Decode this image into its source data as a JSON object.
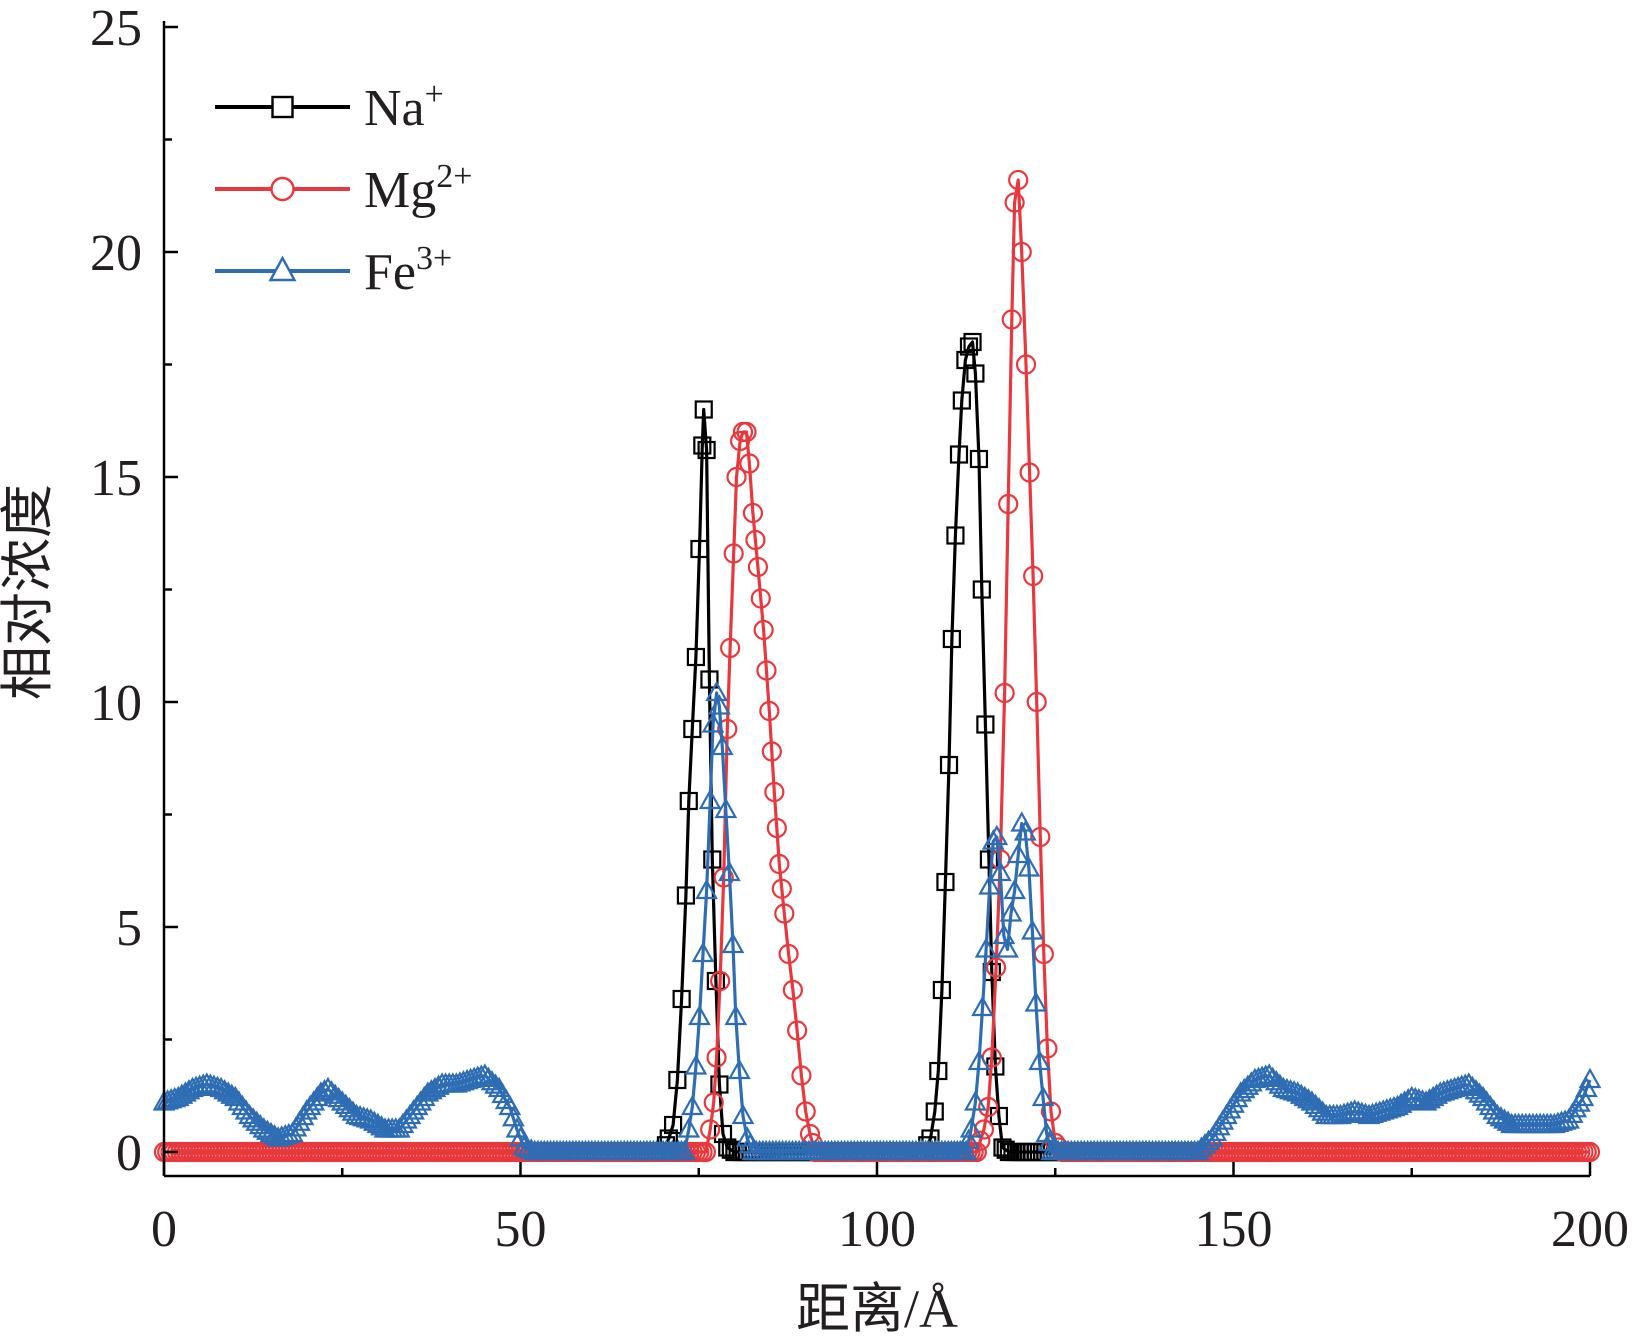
{
  "chart_data": {
    "type": "line",
    "xlabel": "距离/Å",
    "ylabel": "相对浓度",
    "xlim": [
      0,
      200
    ],
    "ylim": [
      -0.5,
      25
    ],
    "xticks": [
      0,
      50,
      100,
      150,
      200
    ],
    "yticks": [
      0,
      5,
      10,
      15,
      20,
      25
    ],
    "xtick_labels": [
      "0",
      "50",
      "100",
      "150",
      "200"
    ],
    "ytick_labels": [
      "0",
      "5",
      "10",
      "15",
      "20",
      "25"
    ],
    "grid": false,
    "legend_position": "top-left",
    "series": [
      {
        "name": "Na",
        "superscript": "+",
        "color": "#000000",
        "marker": "square",
        "points": [
          [
            70,
            0
          ],
          [
            70.8,
            0.3
          ],
          [
            71.4,
            0.6
          ],
          [
            72,
            1.6
          ],
          [
            72.6,
            3.4
          ],
          [
            73.2,
            5.7
          ],
          [
            73.6,
            7.8
          ],
          [
            74.1,
            9.4
          ],
          [
            74.6,
            11.0
          ],
          [
            75.1,
            13.4
          ],
          [
            75.5,
            15.7
          ],
          [
            75.7,
            16.5
          ],
          [
            76.1,
            15.6
          ],
          [
            76.5,
            10.5
          ],
          [
            76.9,
            6.5
          ],
          [
            77.4,
            3.8
          ],
          [
            77.9,
            1.5
          ],
          [
            78.4,
            0.4
          ],
          [
            79,
            0.1
          ],
          [
            80,
            0
          ],
          [
            85,
            0
          ],
          [
            90,
            0
          ],
          [
            95,
            0
          ],
          [
            100,
            0
          ],
          [
            105,
            0
          ],
          [
            106.6,
            0
          ],
          [
            107.5,
            0.3
          ],
          [
            108.1,
            0.9
          ],
          [
            108.6,
            1.8
          ],
          [
            109.1,
            3.6
          ],
          [
            109.6,
            6.0
          ],
          [
            110.1,
            8.6
          ],
          [
            110.5,
            11.4
          ],
          [
            111,
            13.7
          ],
          [
            111.5,
            15.5
          ],
          [
            111.9,
            16.7
          ],
          [
            112.4,
            17.6
          ],
          [
            112.9,
            17.9
          ],
          [
            113.4,
            18.0
          ],
          [
            113.8,
            17.3
          ],
          [
            114.3,
            15.4
          ],
          [
            114.7,
            12.5
          ],
          [
            115.2,
            9.5
          ],
          [
            115.7,
            6.5
          ],
          [
            116.1,
            4.0
          ],
          [
            116.6,
            1.9
          ],
          [
            117.1,
            0.8
          ],
          [
            117.6,
            0.1
          ],
          [
            118.5,
            0
          ],
          [
            120,
            0
          ],
          [
            125,
            0
          ],
          [
            130,
            0
          ]
        ]
      },
      {
        "name": "Mg",
        "superscript": "2+",
        "color": "#e8383d",
        "marker": "circle",
        "points": [
          [
            0,
            0
          ],
          [
            10,
            0
          ],
          [
            20,
            0
          ],
          [
            30,
            0
          ],
          [
            40,
            0
          ],
          [
            50,
            0
          ],
          [
            60,
            0
          ],
          [
            70,
            0
          ],
          [
            76,
            0
          ],
          [
            76.6,
            0.5
          ],
          [
            77.1,
            1.1
          ],
          [
            77.5,
            2.1
          ],
          [
            78,
            3.8
          ],
          [
            78.5,
            6.1
          ],
          [
            79,
            9.4
          ],
          [
            79.4,
            11.2
          ],
          [
            79.9,
            13.3
          ],
          [
            80.3,
            15.0
          ],
          [
            80.8,
            15.8
          ],
          [
            81.2,
            16.0
          ],
          [
            81.7,
            16.0
          ],
          [
            82.1,
            15.3
          ],
          [
            82.6,
            14.2
          ],
          [
            83.3,
            13.0
          ],
          [
            84.1,
            11.6
          ],
          [
            84.9,
            9.8
          ],
          [
            85.6,
            8.0
          ],
          [
            86.3,
            6.4
          ],
          [
            87,
            5.3
          ],
          [
            87.6,
            4.4
          ],
          [
            88.2,
            3.6
          ],
          [
            88.8,
            2.7
          ],
          [
            89.4,
            1.7
          ],
          [
            90,
            0.9
          ],
          [
            90.6,
            0.4
          ],
          [
            91.3,
            0
          ],
          [
            100,
            0
          ],
          [
            110,
            0
          ],
          [
            114,
            0
          ],
          [
            115,
            0.5
          ],
          [
            115.6,
            1.0
          ],
          [
            116.1,
            2.1
          ],
          [
            116.7,
            4.1
          ],
          [
            117.3,
            6.5
          ],
          [
            117.9,
            10.2
          ],
          [
            118.4,
            14.4
          ],
          [
            118.9,
            18.5
          ],
          [
            119.3,
            21.1
          ],
          [
            119.8,
            21.6
          ],
          [
            120.3,
            20.0
          ],
          [
            120.9,
            17.5
          ],
          [
            121.4,
            15.1
          ],
          [
            121.9,
            12.8
          ],
          [
            122.4,
            10.0
          ],
          [
            122.9,
            7.0
          ],
          [
            123.4,
            4.4
          ],
          [
            123.9,
            2.3
          ],
          [
            124.4,
            0.9
          ],
          [
            125,
            0.2
          ],
          [
            126,
            0
          ],
          [
            130,
            0
          ],
          [
            140,
            0
          ],
          [
            150,
            0
          ],
          [
            160,
            0
          ],
          [
            170,
            0
          ],
          [
            180,
            0
          ],
          [
            190,
            0
          ],
          [
            200,
            0
          ]
        ]
      },
      {
        "name": "Fe",
        "superscript": "3+",
        "color": "#2e6db4",
        "marker": "triangle",
        "points": [
          [
            0,
            1.1
          ],
          [
            2,
            1.2
          ],
          [
            4,
            1.4
          ],
          [
            6,
            1.5
          ],
          [
            8,
            1.4
          ],
          [
            10,
            1.2
          ],
          [
            12,
            0.8
          ],
          [
            14,
            0.5
          ],
          [
            16,
            0.3
          ],
          [
            18,
            0.4
          ],
          [
            20,
            0.9
          ],
          [
            22,
            1.3
          ],
          [
            23,
            1.4
          ],
          [
            25,
            1.1
          ],
          [
            27,
            0.8
          ],
          [
            29,
            0.7
          ],
          [
            31,
            0.5
          ],
          [
            33,
            0.5
          ],
          [
            35,
            0.9
          ],
          [
            37,
            1.3
          ],
          [
            39,
            1.5
          ],
          [
            41,
            1.5
          ],
          [
            43,
            1.6
          ],
          [
            45,
            1.7
          ],
          [
            47,
            1.4
          ],
          [
            48.5,
            1.0
          ],
          [
            49.5,
            0.5
          ],
          [
            50.5,
            0.1
          ],
          [
            52,
            0
          ],
          [
            60,
            0
          ],
          [
            70,
            0
          ],
          [
            73,
            0
          ],
          [
            73.6,
            0.5
          ],
          [
            74.1,
            1.0
          ],
          [
            74.6,
            1.9
          ],
          [
            75.1,
            3.0
          ],
          [
            75.6,
            4.4
          ],
          [
            76.1,
            5.8
          ],
          [
            76.6,
            7.8
          ],
          [
            77,
            9.5
          ],
          [
            77.5,
            10.2
          ],
          [
            77.9,
            9.9
          ],
          [
            78.3,
            9.0
          ],
          [
            78.8,
            7.6
          ],
          [
            79.3,
            6.2
          ],
          [
            79.8,
            4.6
          ],
          [
            80.2,
            3.0
          ],
          [
            80.7,
            1.8
          ],
          [
            81.2,
            0.8
          ],
          [
            81.8,
            0.3
          ],
          [
            82.6,
            0
          ],
          [
            90,
            0
          ],
          [
            100,
            0
          ],
          [
            110,
            0
          ],
          [
            112.5,
            0
          ],
          [
            113.2,
            0.5
          ],
          [
            113.8,
            1.1
          ],
          [
            114.3,
            2.0
          ],
          [
            114.8,
            3.2
          ],
          [
            115.3,
            4.5
          ],
          [
            115.8,
            5.9
          ],
          [
            116.3,
            6.9
          ],
          [
            116.8,
            7.0
          ],
          [
            117.3,
            6.2
          ],
          [
            117.8,
            4.8
          ],
          [
            118.3,
            4.5
          ],
          [
            118.8,
            5.3
          ],
          [
            119.3,
            5.8
          ],
          [
            119.8,
            6.6
          ],
          [
            120.3,
            7.3
          ],
          [
            120.8,
            7.1
          ],
          [
            121.3,
            6.3
          ],
          [
            121.8,
            4.9
          ],
          [
            122.3,
            3.3
          ],
          [
            122.8,
            2.0
          ],
          [
            123.3,
            1.2
          ],
          [
            123.8,
            0.4
          ],
          [
            124.5,
            0
          ],
          [
            130,
            0
          ],
          [
            140,
            0
          ],
          [
            145,
            0
          ],
          [
            147,
            0.3
          ],
          [
            149,
            0.8
          ],
          [
            151,
            1.3
          ],
          [
            153,
            1.6
          ],
          [
            155,
            1.7
          ],
          [
            157,
            1.4
          ],
          [
            159,
            1.3
          ],
          [
            161,
            1.1
          ],
          [
            163,
            0.8
          ],
          [
            165,
            0.8
          ],
          [
            167,
            0.9
          ],
          [
            169,
            0.8
          ],
          [
            171,
            0.9
          ],
          [
            173,
            1.0
          ],
          [
            175,
            1.2
          ],
          [
            177,
            1.1
          ],
          [
            179,
            1.3
          ],
          [
            181,
            1.4
          ],
          [
            183,
            1.5
          ],
          [
            185,
            1.2
          ],
          [
            187,
            0.8
          ],
          [
            189,
            0.6
          ],
          [
            191,
            0.6
          ],
          [
            193,
            0.6
          ],
          [
            195,
            0.6
          ],
          [
            197,
            0.7
          ],
          [
            199,
            1.2
          ],
          [
            200,
            1.6
          ]
        ]
      }
    ]
  }
}
